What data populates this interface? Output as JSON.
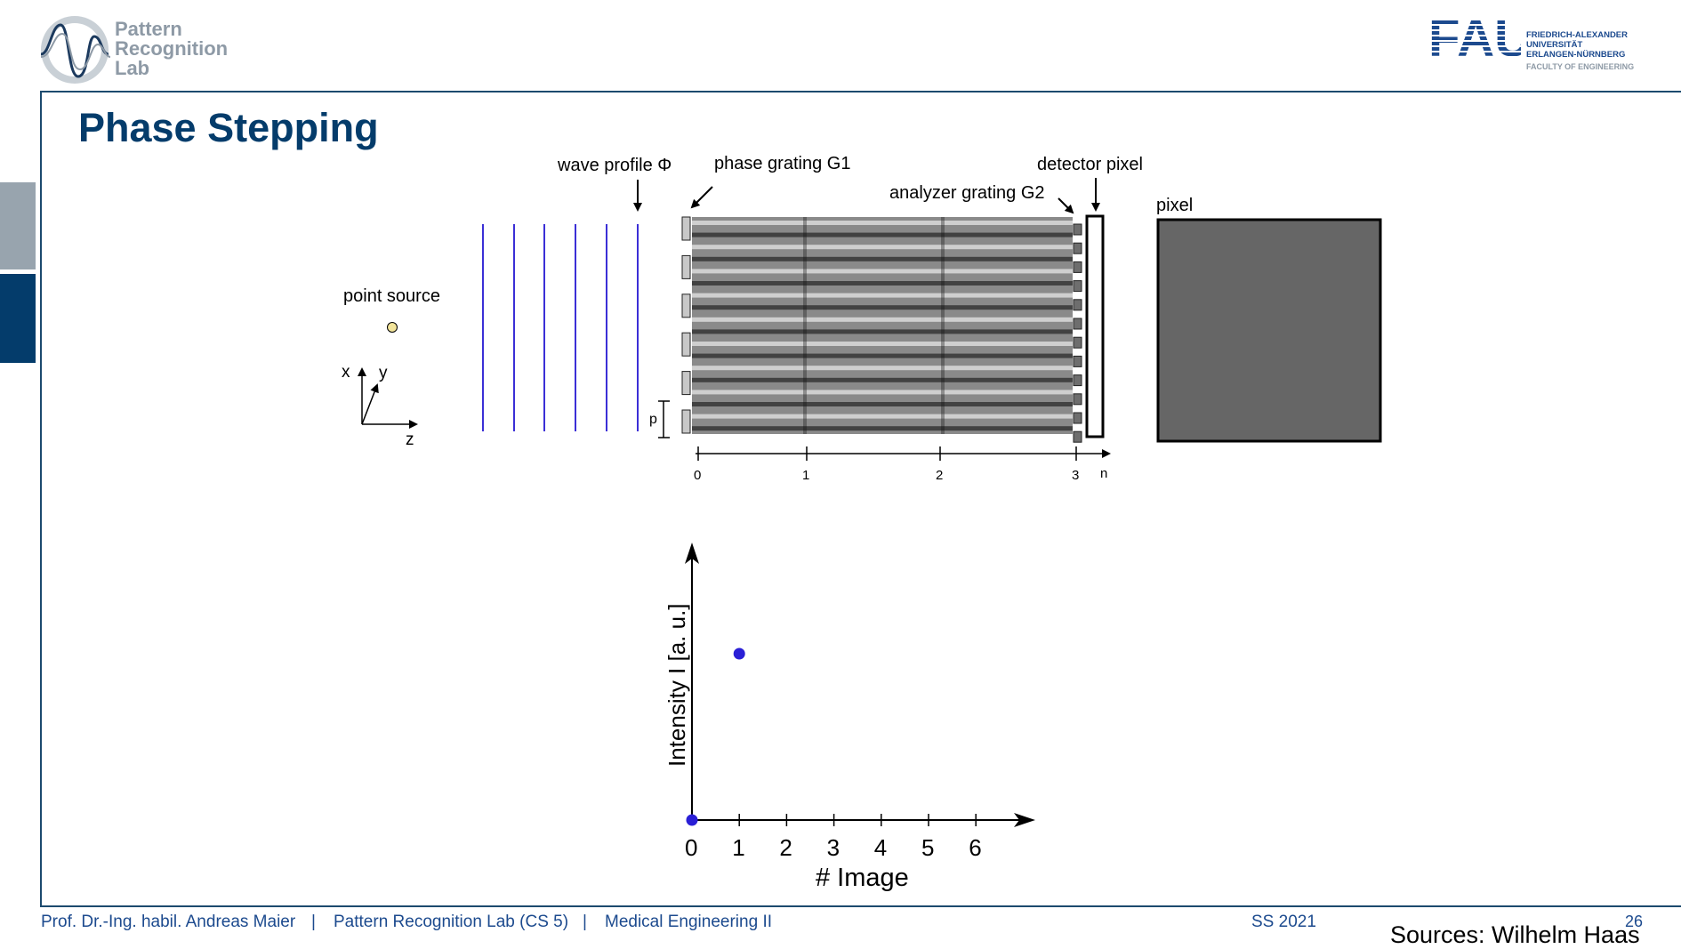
{
  "header": {
    "lab_logo_lines": [
      "Pattern",
      "Recognition",
      "Lab"
    ],
    "university_lines": [
      "FRIEDRICH-ALEXANDER",
      "UNIVERSITÄT",
      "ERLANGEN-NÜRNBERG"
    ],
    "faculty": "FACULTY OF ENGINEERING",
    "fau_wordmark": "FAU"
  },
  "slide": {
    "title": "Phase Stepping"
  },
  "diagram": {
    "labels": {
      "wave_profile": "wave profile Φ",
      "phase_grating": "phase grating G1",
      "analyzer_grating": "analyzer grating G2",
      "detector_pixel": "detector pixel",
      "pixel": "pixel",
      "point_source": "point source",
      "axis_x": "x",
      "axis_y": "y",
      "axis_z": "z",
      "period": "p",
      "distance_axis": "n"
    },
    "distance_ticks": [
      "0",
      "1",
      "2",
      "3"
    ],
    "pixel_gray": "#666666",
    "wave_line_color": "#3b2fd6",
    "point_source_color": "#f2e49a"
  },
  "chart_data": {
    "type": "scatter",
    "xlabel": "# Image",
    "ylabel": "Intensity I [a. u.]",
    "xlim": [
      0,
      7
    ],
    "x_ticks": [
      "0",
      "1",
      "2",
      "3",
      "4",
      "5",
      "6"
    ],
    "points": [
      {
        "x": 0,
        "y": 0
      },
      {
        "x": 1,
        "y": 0.5
      }
    ],
    "point_color": "#2a1fd6"
  },
  "footer": {
    "author": "Prof. Dr.-Ing. habil. Andreas Maier",
    "sep1": "|",
    "lab": "Pattern Recognition Lab (CS 5)",
    "sep2": "|",
    "course": "Medical Engineering II",
    "semester": "SS 2021",
    "page": "26",
    "sources": "Sources: Wilhelm Haas"
  }
}
